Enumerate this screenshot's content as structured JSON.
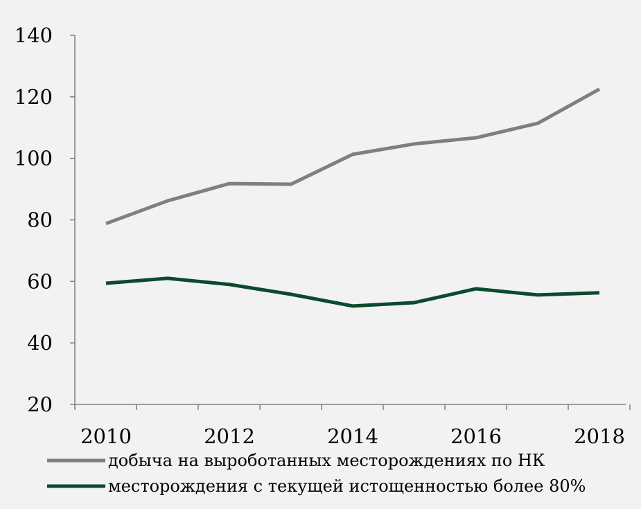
{
  "chart_data": {
    "type": "line",
    "title": "",
    "xlabel": "",
    "ylabel": "",
    "x": [
      2010,
      2011,
      2012,
      2013,
      2014,
      2015,
      2016,
      2017,
      2018
    ],
    "x_tick_labels": [
      "2010",
      "",
      "2012",
      "",
      "2014",
      "",
      "2016",
      "",
      "2018"
    ],
    "y_tick_labels": [
      "20",
      "40",
      "60",
      "80",
      "100",
      "120",
      "140"
    ],
    "ylim": [
      20,
      140
    ],
    "grid": false,
    "legend_position": "bottom",
    "series": [
      {
        "name": "добыча на выроботанных месторождениях по НК",
        "color": "#7f7f7f",
        "values": [
          78.8,
          86.2,
          91.8,
          91.6,
          101.3,
          104.7,
          106.7,
          111.4,
          122.5
        ]
      },
      {
        "name": "месторождения с текущей истощенностью более 80%",
        "color": "#0b4a2c",
        "values": [
          59.4,
          61.0,
          59.0,
          55.8,
          52.0,
          53.1,
          57.6,
          55.6,
          56.3
        ]
      }
    ]
  }
}
